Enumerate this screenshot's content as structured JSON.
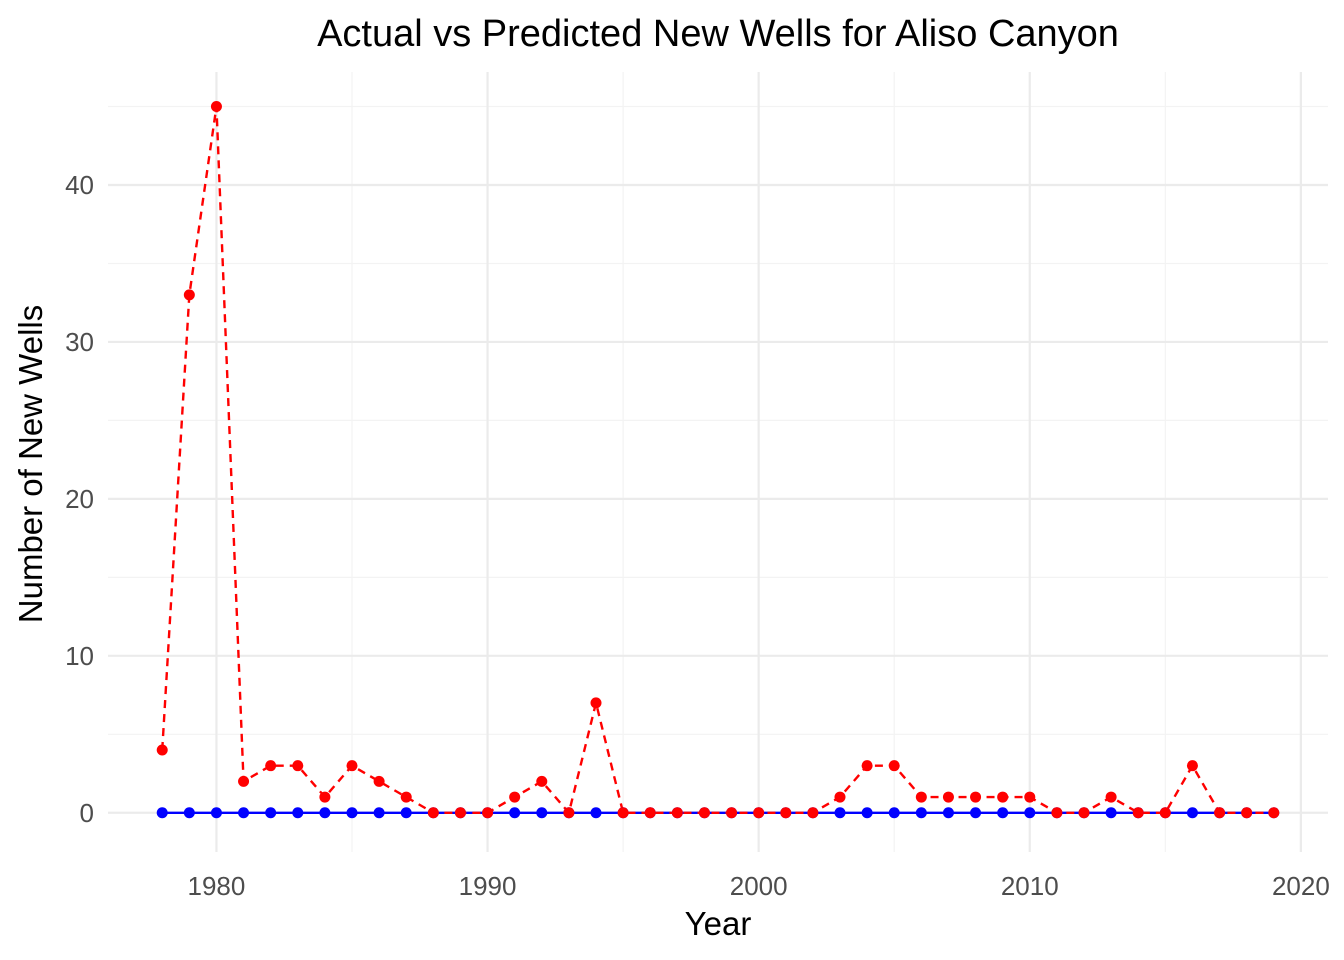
{
  "chart_data": {
    "type": "line",
    "title": "Actual vs Predicted New Wells for Aliso Canyon",
    "xlabel": "Year",
    "ylabel": "Number of New Wells",
    "xlim": [
      1976,
      2021
    ],
    "ylim": [
      -2.5,
      47.2
    ],
    "x_ticks": [
      1980,
      1990,
      2000,
      2010,
      2020
    ],
    "y_ticks": [
      0,
      10,
      20,
      30,
      40
    ],
    "grid": true,
    "legend": "none",
    "x": [
      1978,
      1979,
      1980,
      1981,
      1982,
      1983,
      1984,
      1985,
      1986,
      1987,
      1988,
      1989,
      1990,
      1991,
      1992,
      1993,
      1994,
      1995,
      1996,
      1997,
      1998,
      1999,
      2000,
      2001,
      2002,
      2003,
      2004,
      2005,
      2006,
      2007,
      2008,
      2009,
      2010,
      2011,
      2012,
      2013,
      2014,
      2015,
      2016,
      2017,
      2018,
      2019
    ],
    "series": [
      {
        "color": "#0000ff",
        "line_style": "solid",
        "values": [
          0,
          0,
          0,
          0,
          0,
          0,
          0,
          0,
          0,
          0,
          0,
          0,
          0,
          0,
          0,
          0,
          0,
          0,
          0,
          0,
          0,
          0,
          0,
          0,
          0,
          0,
          0,
          0,
          0,
          0,
          0,
          0,
          0,
          0,
          0,
          0,
          0,
          0,
          0,
          0,
          0,
          0
        ]
      },
      {
        "color": "#ff0000",
        "line_style": "dashed",
        "values": [
          4,
          33,
          45,
          2,
          3,
          3,
          1,
          3,
          2,
          1,
          0,
          0,
          0,
          1,
          2,
          0,
          7,
          0,
          0,
          0,
          0,
          0,
          0,
          0,
          0,
          1,
          3,
          3,
          1,
          1,
          1,
          1,
          1,
          0,
          0,
          1,
          0,
          0,
          3,
          0,
          0,
          0
        ]
      }
    ]
  }
}
